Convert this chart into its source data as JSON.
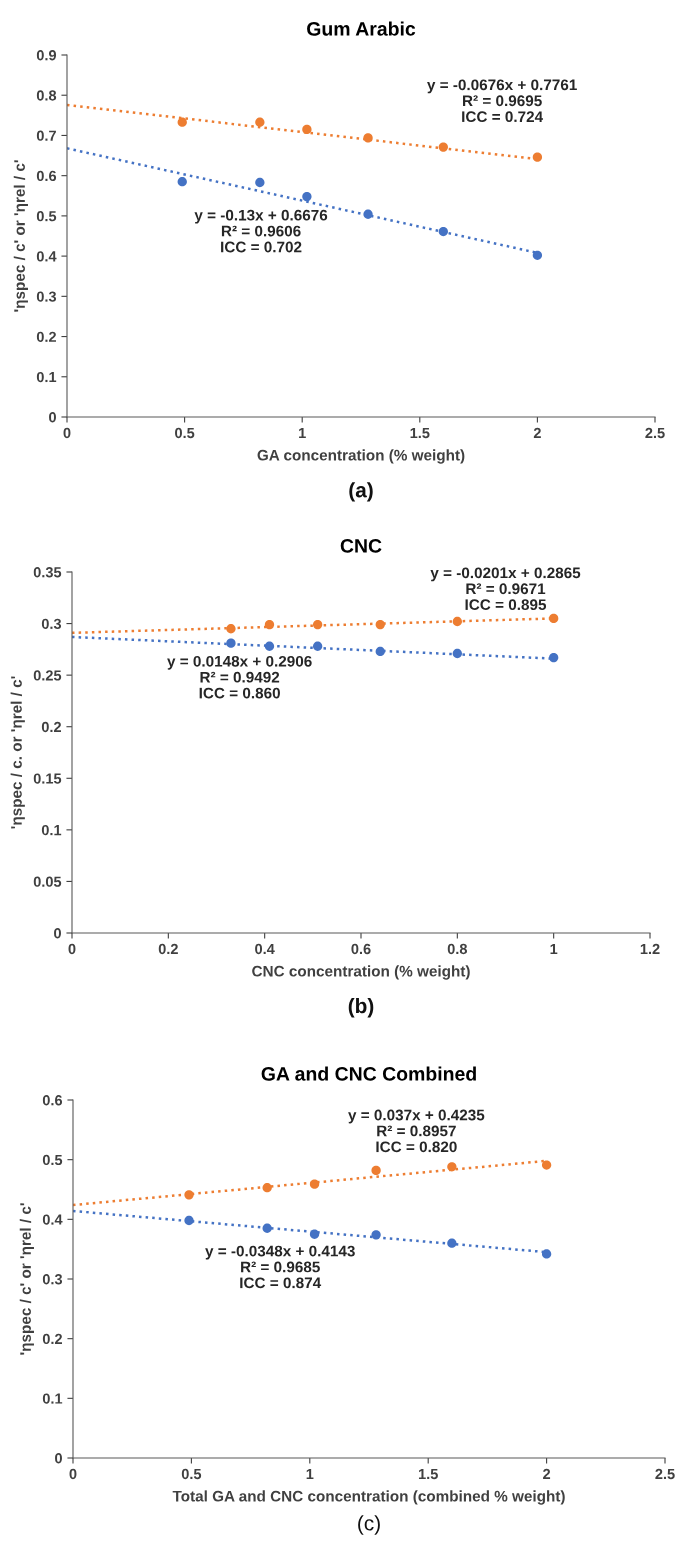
{
  "chart_data": [
    {
      "type": "scatter",
      "title": "Gum Arabic",
      "xlabel": "GA concentration (% weight)",
      "ylabel": "'ηspec / c' or 'ηrel / c'",
      "x": [
        0.49,
        0.82,
        1.02,
        1.28,
        1.6,
        2.0
      ],
      "series": [
        {
          "color": "#ed7d31",
          "values": [
            0.733,
            0.733,
            0.715,
            0.694,
            0.671,
            0.646
          ]
        },
        {
          "color": "#4472c4",
          "values": [
            0.585,
            0.583,
            0.548,
            0.504,
            0.461,
            0.402
          ]
        },
        {
          "type": "line",
          "marker": "none",
          "color": "#ed7d31",
          "x": [
            0,
            2
          ],
          "values": [
            0.776,
            0.641
          ]
        },
        {
          "type": "line",
          "marker": "none",
          "color": "#4472c4",
          "x": [
            0,
            2
          ],
          "values": [
            0.668,
            0.408
          ]
        }
      ],
      "xlim": [
        0,
        2.5
      ],
      "xticks": [
        0,
        0.5,
        1,
        1.5,
        2,
        2.5
      ],
      "ylim": [
        0,
        0.9
      ],
      "yticks": [
        0,
        0.1,
        0.2,
        0.3,
        0.4,
        0.5,
        0.6,
        0.7,
        0.8,
        0.9
      ],
      "grid": false,
      "marker": "circle",
      "line_style": "dotted",
      "annotations": [
        "y = -0.0676x + 0.7761\nR² = 0.9695\nICC = 0.724",
        "y = -0.13x + 0.6676\nR² = 0.9606\nICC = 0.702",
        "(a)"
      ]
    },
    {
      "type": "scatter",
      "title": "CNC",
      "xlabel": "CNC concentration (% weight)",
      "ylabel": "'ηspec / c. or 'ηrel / c'",
      "x": [
        0.33,
        0.41,
        0.51,
        0.64,
        0.8,
        1.0
      ],
      "series": [
        {
          "color": "#ed7d31",
          "values": [
            0.295,
            0.299,
            0.299,
            0.299,
            0.302,
            0.305
          ]
        },
        {
          "color": "#4472c4",
          "values": [
            0.281,
            0.278,
            0.278,
            0.273,
            0.271,
            0.267
          ]
        },
        {
          "type": "line",
          "marker": "none",
          "color": "#ed7d31",
          "x": [
            0,
            1
          ],
          "values": [
            0.291,
            0.305
          ]
        },
        {
          "type": "line",
          "marker": "none",
          "color": "#4472c4",
          "x": [
            0,
            1
          ],
          "values": [
            0.287,
            0.266
          ]
        }
      ],
      "xlim": [
        0,
        1.2
      ],
      "xticks": [
        0,
        0.2,
        0.4,
        0.6,
        0.8,
        1,
        1.2
      ],
      "ylim": [
        0,
        0.35
      ],
      "yticks": [
        0,
        0.05,
        0.1,
        0.15,
        0.2,
        0.25,
        0.3,
        0.35
      ],
      "grid": false,
      "marker": "circle",
      "line_style": "dotted",
      "annotations": [
        "y = -0.0201x + 0.2865\nR² = 0.9671\nICC = 0.895",
        "y = 0.0148x + 0.2906\nR² = 0.9492\nICC = 0.860",
        "(b)"
      ]
    },
    {
      "type": "scatter",
      "title": "GA and CNC Combined",
      "xlabel": "Total GA and CNC concentration (combined % weight)",
      "ylabel": "'ηspec / c' or 'ηrel / c'",
      "x": [
        0.49,
        0.82,
        1.02,
        1.28,
        1.6,
        2.0
      ],
      "series": [
        {
          "color": "#ed7d31",
          "values": [
            0.441,
            0.453,
            0.459,
            0.482,
            0.488,
            0.491
          ]
        },
        {
          "color": "#4472c4",
          "values": [
            0.398,
            0.385,
            0.375,
            0.374,
            0.36,
            0.342
          ]
        },
        {
          "type": "line",
          "marker": "none",
          "color": "#ed7d31",
          "x": [
            0,
            2
          ],
          "values": [
            0.424,
            0.498
          ]
        },
        {
          "type": "line",
          "marker": "none",
          "color": "#4472c4",
          "x": [
            0,
            2
          ],
          "values": [
            0.414,
            0.345
          ]
        }
      ],
      "xlim": [
        0,
        2.5
      ],
      "xticks": [
        0,
        0.5,
        1,
        1.5,
        2,
        2.5
      ],
      "ylim": [
        0,
        0.6
      ],
      "yticks": [
        0,
        0.1,
        0.2,
        0.3,
        0.4,
        0.5,
        0.6
      ],
      "grid": false,
      "marker": "circle",
      "line_style": "dotted",
      "annotations": [
        "y = 0.037x + 0.4235\nR² = 0.8957\nICC = 0.820",
        "y = -0.0348x + 0.4143\nR² = 0.9685\nICC = 0.874",
        "(c)"
      ]
    }
  ]
}
